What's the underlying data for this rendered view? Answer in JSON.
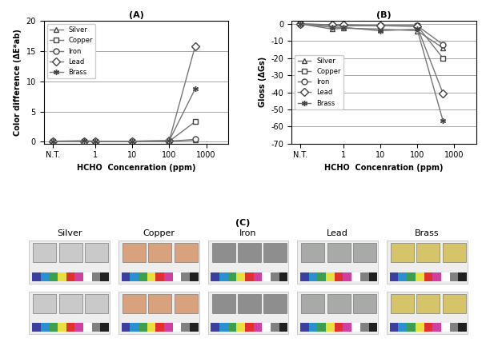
{
  "chart_data": [
    {
      "type": "line",
      "title": "(A)",
      "x_label": "HCHO  Concenration (ppm)",
      "y_label": "Color difference (ΔE*ab)",
      "x": [
        0.07,
        0.5,
        1,
        10,
        100,
        500
      ],
      "log": "x",
      "xlim": [
        0.04,
        4000
      ],
      "xticks": [
        {
          "value": 0.07,
          "label": "N.T."
        },
        1,
        10,
        100,
        1000
      ],
      "ylim": [
        -0.3,
        20
      ],
      "yticks": [
        0,
        5,
        10,
        15,
        20
      ],
      "grid": "y",
      "legend": "upper left",
      "series": [
        {
          "name": "Silver",
          "color": "#777777",
          "marker": "triangle",
          "values": [
            0.1,
            0.1,
            0.1,
            0.1,
            0.1,
            0.3
          ]
        },
        {
          "name": "Copper",
          "color": "#777777",
          "marker": "square",
          "values": [
            0.1,
            0.1,
            0.1,
            0.1,
            0.1,
            3.3
          ]
        },
        {
          "name": "Iron",
          "color": "#777777",
          "marker": "circle",
          "values": [
            0.1,
            0.1,
            0.1,
            0.1,
            0.1,
            0.4
          ]
        },
        {
          "name": "Lead",
          "color": "#777777",
          "marker": "diamond",
          "values": [
            0.1,
            0.1,
            0.1,
            0.1,
            0.2,
            15.7
          ]
        },
        {
          "name": "Brass",
          "color": "#777777",
          "marker": "asterisk",
          "values": [
            0.1,
            0.2,
            0.1,
            0.1,
            0.2,
            8.7
          ]
        }
      ]
    },
    {
      "type": "line",
      "title": "(B)",
      "x_label": "HCHO  Concenration (ppm)",
      "y_label": "Gloss (ΔGs)",
      "x": [
        0.07,
        0.5,
        1,
        10,
        100,
        500
      ],
      "log": "x",
      "xlim": [
        0.04,
        4000
      ],
      "xticks": [
        {
          "value": 0.07,
          "label": "N.T."
        },
        1,
        10,
        100,
        1000
      ],
      "ylim": [
        -70,
        2
      ],
      "yticks": [
        -70,
        -60,
        -50,
        -40,
        -30,
        -20,
        -10,
        0
      ],
      "grid": "y",
      "legend": "center left",
      "series": [
        {
          "name": "Silver",
          "color": "#777777",
          "marker": "triangle",
          "values": [
            0,
            -3,
            -2.5,
            -3,
            -4,
            -14
          ]
        },
        {
          "name": "Copper",
          "color": "#777777",
          "marker": "square",
          "values": [
            0,
            -1,
            -1,
            -1,
            -1,
            -20
          ]
        },
        {
          "name": "Iron",
          "color": "#777777",
          "marker": "circle",
          "values": [
            0,
            -0.5,
            -1,
            -1,
            -1,
            -12
          ]
        },
        {
          "name": "Lead",
          "color": "#777777",
          "marker": "diamond",
          "values": [
            0,
            -0.5,
            -0.5,
            -1,
            -1.5,
            -40.5
          ]
        },
        {
          "name": "Brass",
          "color": "#777777",
          "marker": "asterisk",
          "values": [
            0,
            -2,
            -2,
            -4,
            -3,
            -56.5
          ]
        }
      ]
    }
  ],
  "panel_c": {
    "title": "(C)",
    "labels": [
      "Silver",
      "Copper",
      "Iron",
      "Lead",
      "Brass"
    ]
  }
}
